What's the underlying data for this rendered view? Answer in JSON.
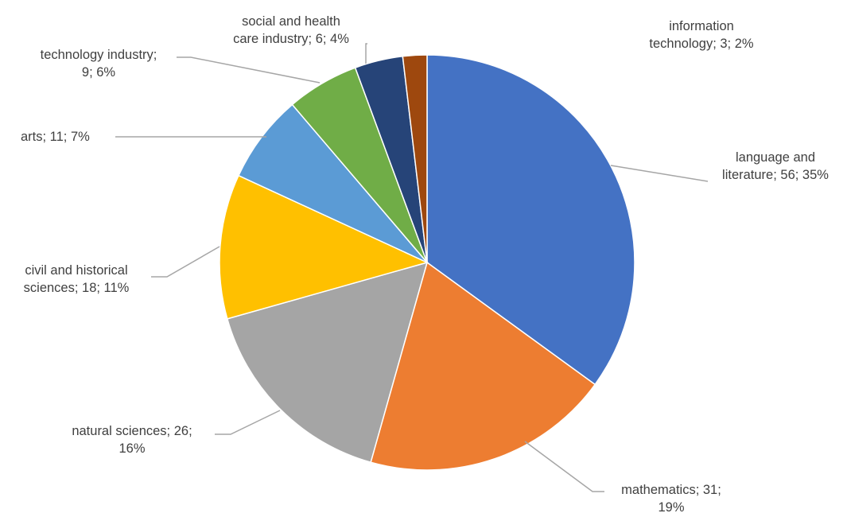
{
  "chart_data": {
    "type": "pie",
    "title": "",
    "colors": [
      "#4472c4",
      "#ed7d31",
      "#a5a5a5",
      "#ffc000",
      "#5b9bd5",
      "#70ad47",
      "#264478",
      "#9e480e"
    ],
    "slices": [
      {
        "category": "language and literature",
        "value": 56,
        "percent": 35
      },
      {
        "category": "mathematics",
        "value": 31,
        "percent": 19
      },
      {
        "category": "natural sciences",
        "value": 26,
        "percent": 16
      },
      {
        "category": "civil and historical sciences",
        "value": 18,
        "percent": 11
      },
      {
        "category": "arts",
        "value": 11,
        "percent": 7
      },
      {
        "category": "technology industry",
        "value": 9,
        "percent": 6
      },
      {
        "category": "social and health care industry",
        "value": 6,
        "percent": 4
      },
      {
        "category": "information technology",
        "value": 3,
        "percent": 2
      }
    ],
    "labels": {
      "language_and_literature": {
        "line1": "language and",
        "line2": "literature; 56; 35%"
      },
      "mathematics": {
        "line1": "mathematics; 31;",
        "line2": "19%"
      },
      "natural_sciences": {
        "line1": "natural sciences; 26;",
        "line2": "16%"
      },
      "civil_and_historical": {
        "line1": "civil and historical",
        "line2": "sciences; 18; 11%"
      },
      "arts": {
        "line1": "arts; 11; 7%"
      },
      "technology_industry": {
        "line1": "technology industry;",
        "line2": "9; 6%"
      },
      "social_and_health": {
        "line1": "social and health",
        "line2": "care industry; 6; 4%"
      },
      "information_technology": {
        "line1": "information",
        "line2": "technology; 3; 2%"
      }
    }
  }
}
